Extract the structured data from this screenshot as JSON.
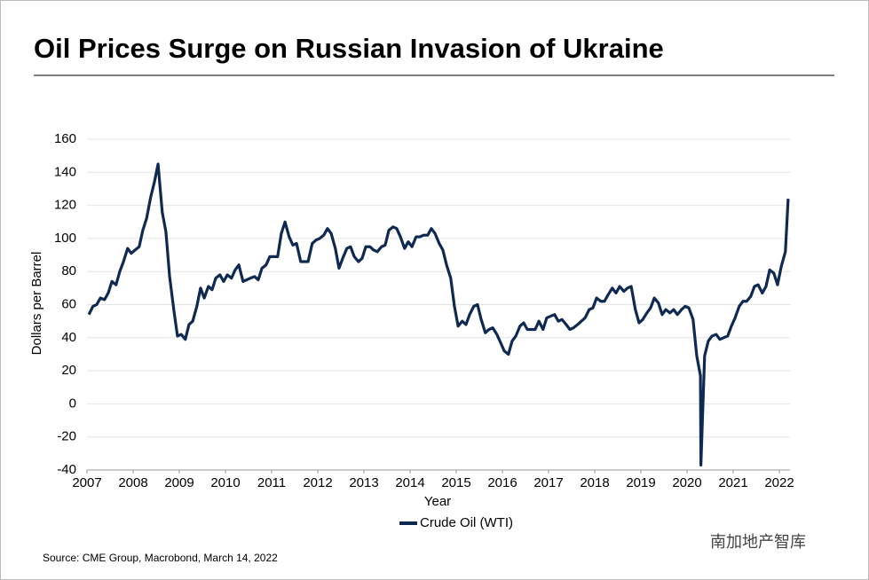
{
  "chart_data": {
    "type": "line",
    "title": "Oil Prices Surge on Russian Invasion of Ukraine",
    "x_label": "Year",
    "y_label": "Dollars per Barrel",
    "source": "Source: CME Group, Macrobond, March 14, 2022",
    "watermark": "南加地产智库",
    "x": [
      2007.04,
      2007.13,
      2007.21,
      2007.29,
      2007.38,
      2007.46,
      2007.54,
      2007.63,
      2007.71,
      2007.79,
      2007.88,
      2007.96,
      2008.04,
      2008.13,
      2008.21,
      2008.29,
      2008.38,
      2008.46,
      2008.54,
      2008.63,
      2008.71,
      2008.79,
      2008.88,
      2008.96,
      2009.04,
      2009.13,
      2009.21,
      2009.29,
      2009.38,
      2009.46,
      2009.54,
      2009.63,
      2009.71,
      2009.79,
      2009.88,
      2009.96,
      2010.04,
      2010.13,
      2010.21,
      2010.29,
      2010.38,
      2010.46,
      2010.54,
      2010.63,
      2010.71,
      2010.79,
      2010.88,
      2010.96,
      2011.04,
      2011.13,
      2011.21,
      2011.29,
      2011.38,
      2011.46,
      2011.54,
      2011.63,
      2011.71,
      2011.79,
      2011.88,
      2011.96,
      2012.04,
      2012.13,
      2012.21,
      2012.29,
      2012.38,
      2012.46,
      2012.54,
      2012.63,
      2012.71,
      2012.79,
      2012.88,
      2012.96,
      2013.04,
      2013.13,
      2013.21,
      2013.29,
      2013.38,
      2013.46,
      2013.54,
      2013.63,
      2013.71,
      2013.79,
      2013.88,
      2013.96,
      2014.04,
      2014.13,
      2014.21,
      2014.29,
      2014.38,
      2014.46,
      2014.54,
      2014.63,
      2014.71,
      2014.79,
      2014.88,
      2014.96,
      2015.04,
      2015.13,
      2015.21,
      2015.29,
      2015.38,
      2015.46,
      2015.54,
      2015.63,
      2015.71,
      2015.79,
      2015.88,
      2015.96,
      2016.04,
      2016.13,
      2016.21,
      2016.29,
      2016.38,
      2016.46,
      2016.54,
      2016.63,
      2016.71,
      2016.79,
      2016.88,
      2016.96,
      2017.04,
      2017.13,
      2017.21,
      2017.29,
      2017.38,
      2017.46,
      2017.54,
      2017.63,
      2017.71,
      2017.79,
      2017.88,
      2017.96,
      2018.04,
      2018.13,
      2018.21,
      2018.29,
      2018.38,
      2018.46,
      2018.54,
      2018.63,
      2018.71,
      2018.79,
      2018.88,
      2018.96,
      2019.04,
      2019.13,
      2019.21,
      2019.29,
      2019.38,
      2019.46,
      2019.54,
      2019.63,
      2019.71,
      2019.79,
      2019.88,
      2019.96,
      2020.04,
      2020.13,
      2020.21,
      2020.29,
      2020.3,
      2020.38,
      2020.46,
      2020.54,
      2020.63,
      2020.71,
      2020.79,
      2020.88,
      2020.96,
      2021.04,
      2021.13,
      2021.21,
      2021.29,
      2021.38,
      2021.46,
      2021.54,
      2021.63,
      2021.71,
      2021.79,
      2021.88,
      2021.96,
      2022.04,
      2022.13,
      2022.19
    ],
    "series": [
      {
        "name": "Crude Oil (WTI)",
        "color": "#0f2a52",
        "values": [
          54,
          59,
          60,
          64,
          63,
          67,
          74,
          72,
          80,
          86,
          94,
          91,
          93,
          95,
          105,
          112,
          125,
          134,
          145,
          116,
          104,
          77,
          57,
          41,
          42,
          39,
          48,
          50,
          59,
          70,
          64,
          71,
          69,
          76,
          78,
          74,
          78,
          76,
          81,
          84,
          74,
          75,
          76,
          77,
          75,
          82,
          84,
          89,
          89,
          89,
          103,
          110,
          101,
          96,
          97,
          86,
          86,
          86,
          97,
          99,
          100,
          102,
          106,
          103,
          94,
          82,
          88,
          94,
          95,
          89,
          86,
          88,
          95,
          95,
          93,
          92,
          95,
          96,
          105,
          107,
          106,
          101,
          94,
          98,
          95,
          101,
          101,
          102,
          102,
          106,
          103,
          97,
          93,
          84,
          76,
          59,
          47,
          50,
          48,
          54,
          59,
          60,
          51,
          43,
          45,
          46,
          42,
          37,
          32,
          30,
          38,
          41,
          47,
          49,
          45,
          45,
          45,
          50,
          45,
          52,
          53,
          54,
          50,
          51,
          48,
          45,
          46,
          48,
          50,
          52,
          57,
          58,
          64,
          62,
          62,
          66,
          70,
          67,
          71,
          68,
          70,
          71,
          57,
          49,
          51,
          55,
          58,
          64,
          61,
          54,
          57,
          55,
          57,
          54,
          57,
          59,
          58,
          51,
          29,
          17,
          -37,
          29,
          38,
          41,
          42,
          39,
          40,
          41,
          47,
          52,
          59,
          62,
          62,
          65,
          71,
          72,
          67,
          71,
          81,
          79,
          72,
          83,
          92,
          124
        ]
      }
    ],
    "xlim": [
      2007,
      2022.23
    ],
    "xticks": [
      2007,
      2008,
      2009,
      2010,
      2011,
      2012,
      2013,
      2014,
      2015,
      2016,
      2017,
      2018,
      2019,
      2020,
      2021,
      2022
    ],
    "ylim": [
      -40,
      160
    ],
    "yticks": [
      -40,
      -20,
      0,
      20,
      40,
      60,
      80,
      100,
      120,
      140,
      160
    ],
    "grid": true
  }
}
